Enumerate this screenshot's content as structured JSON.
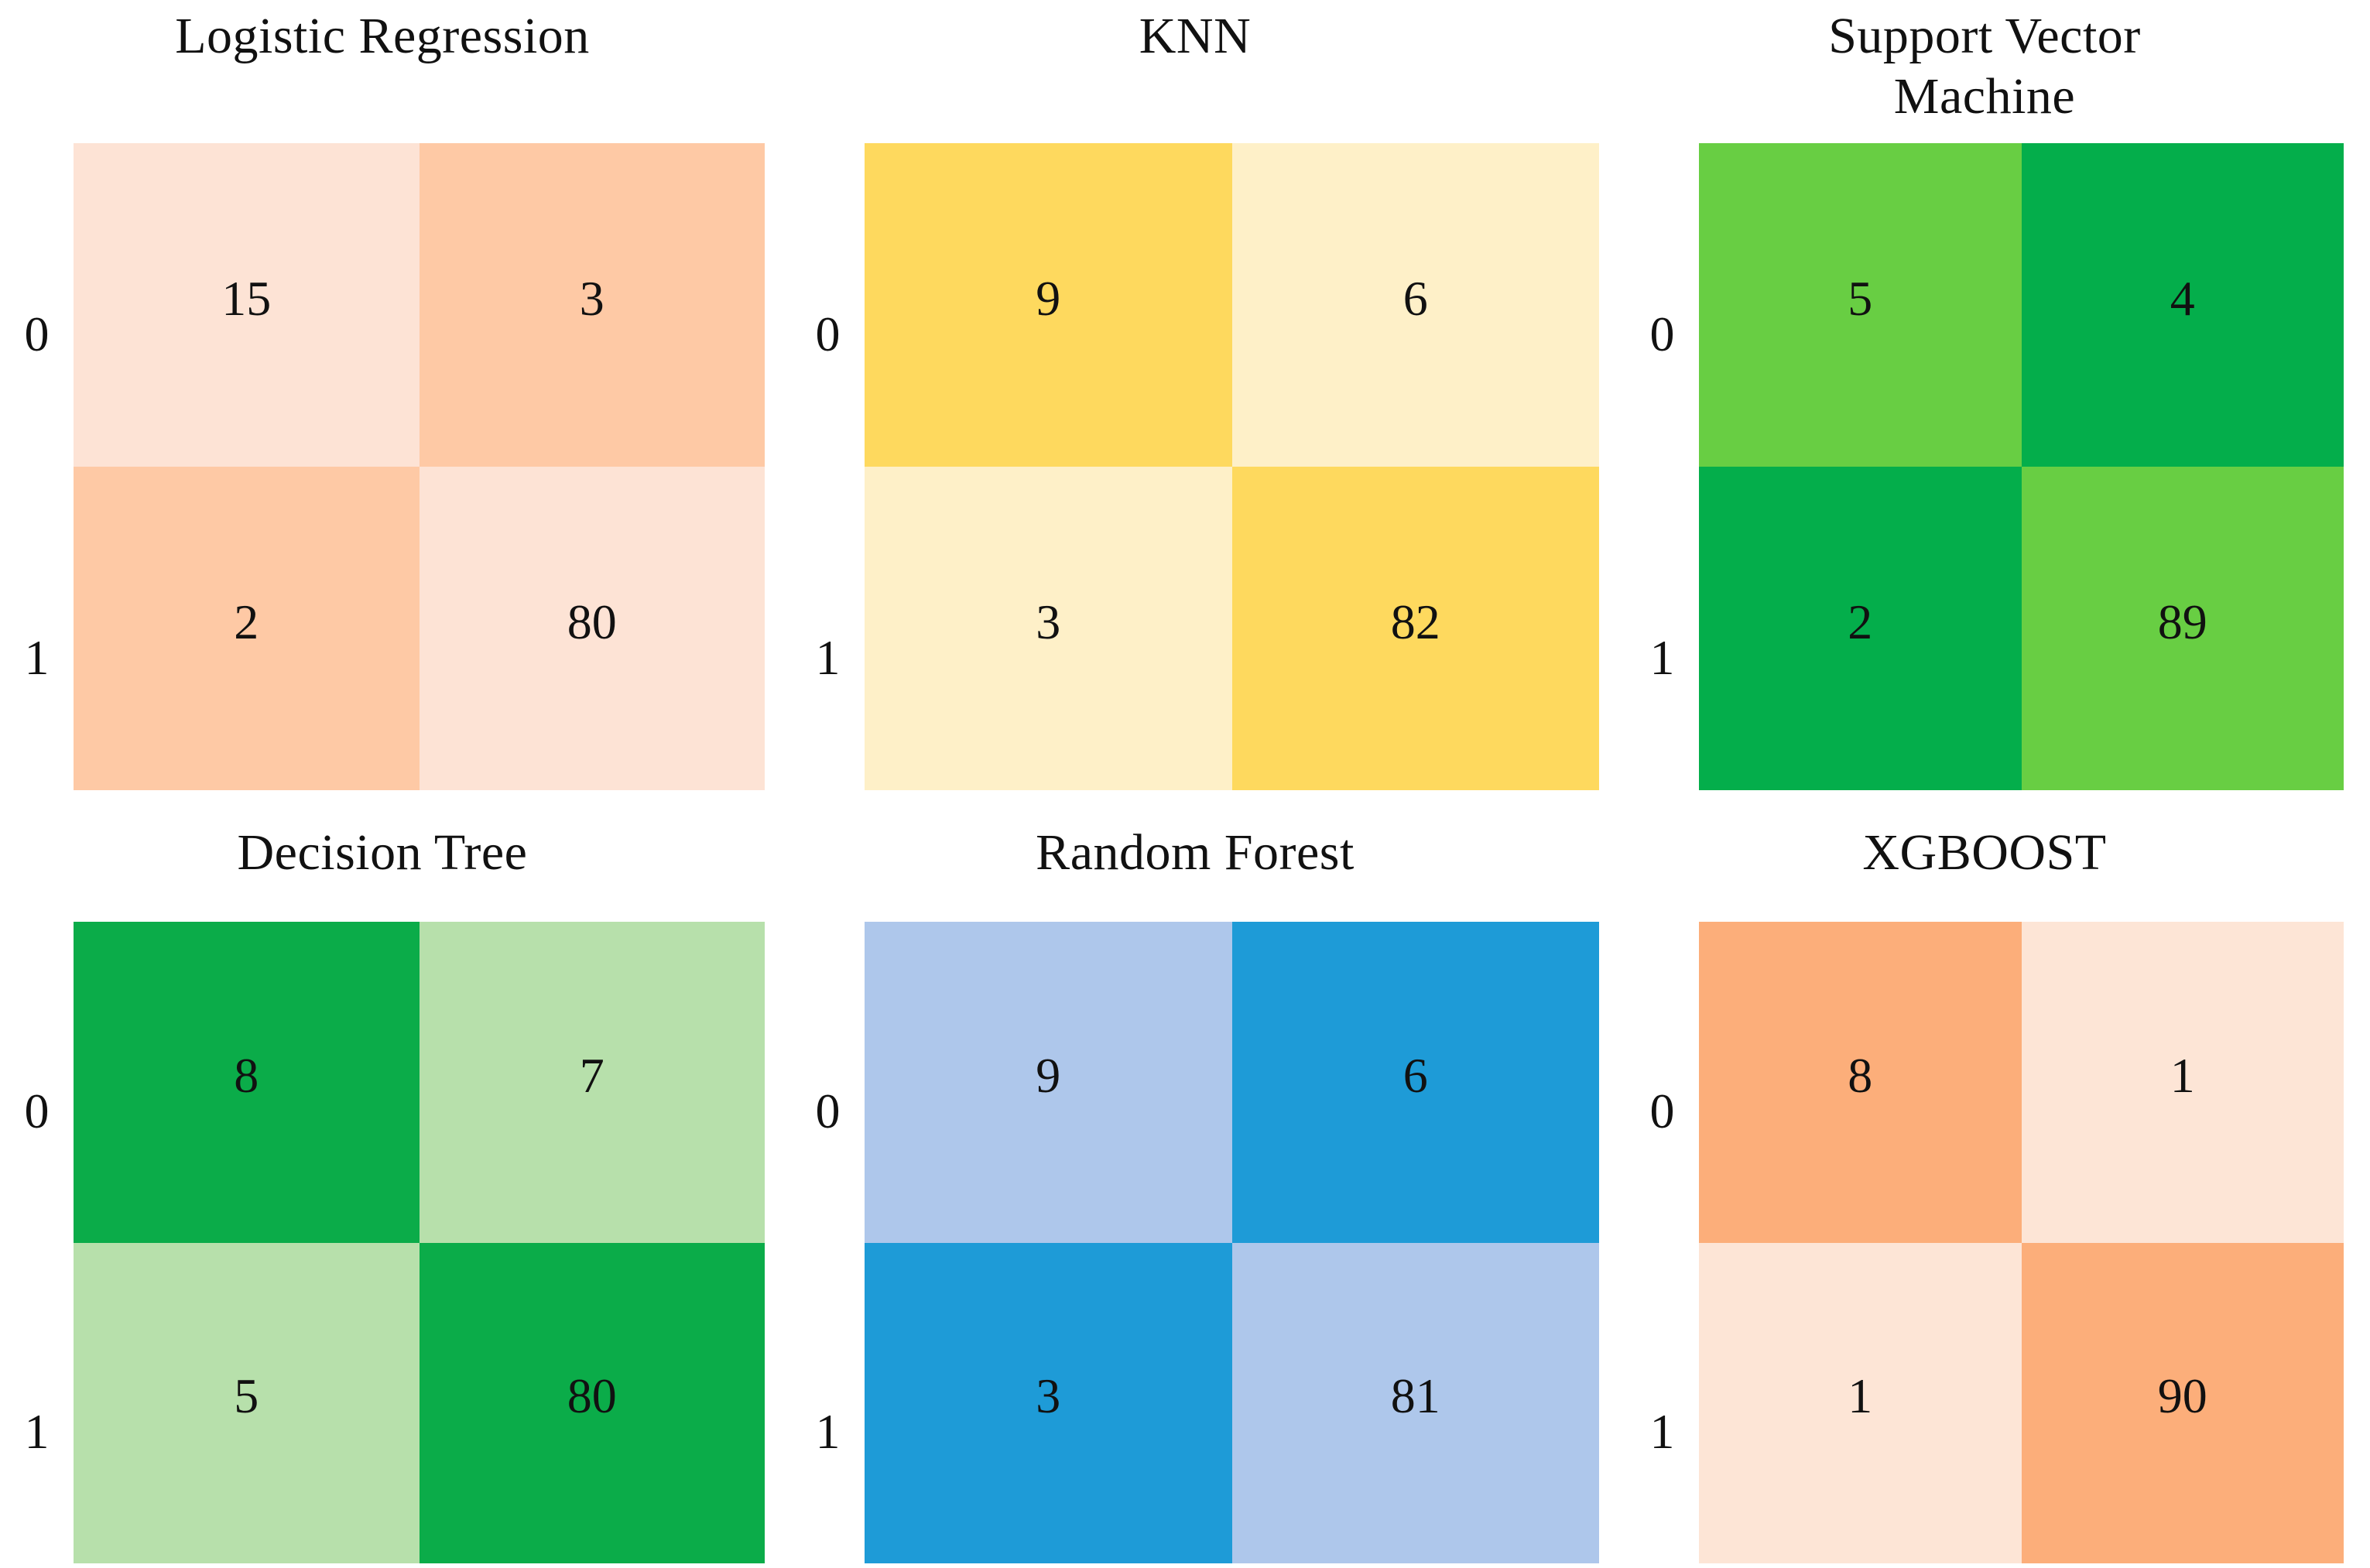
{
  "chart_data": [
    {
      "type": "heatmap",
      "title": "Logistic Regression",
      "row_labels": [
        "0",
        "1"
      ],
      "values": [
        [
          15,
          3
        ],
        [
          2,
          80
        ]
      ],
      "cell_colors": [
        [
          "#FDE3D5",
          "#FEC9A5"
        ],
        [
          "#FEC9A5",
          "#FDE3D5"
        ]
      ]
    },
    {
      "type": "heatmap",
      "title": "KNN",
      "row_labels": [
        "0",
        "1"
      ],
      "values": [
        [
          9,
          6
        ],
        [
          3,
          82
        ]
      ],
      "cell_colors": [
        [
          "#FED95E",
          "#FEF0C8"
        ],
        [
          "#FEF0C8",
          "#FED95E"
        ]
      ]
    },
    {
      "type": "heatmap",
      "title": "Support Vector Machine",
      "row_labels": [
        "0",
        "1"
      ],
      "values": [
        [
          5,
          4
        ],
        [
          2,
          89
        ]
      ],
      "cell_colors": [
        [
          "#68CE43",
          "#04AE4B"
        ],
        [
          "#04AE4B",
          "#68CE43"
        ]
      ]
    },
    {
      "type": "heatmap",
      "title": "Decision Tree",
      "row_labels": [
        "0",
        "1"
      ],
      "values": [
        [
          8,
          7
        ],
        [
          5,
          80
        ]
      ],
      "cell_colors": [
        [
          "#0BAC49",
          "#B7E0AB"
        ],
        [
          "#B7E0AB",
          "#0BAC49"
        ]
      ]
    },
    {
      "type": "heatmap",
      "title": "Random Forest",
      "row_labels": [
        "0",
        "1"
      ],
      "values": [
        [
          9,
          6
        ],
        [
          3,
          81
        ]
      ],
      "cell_colors": [
        [
          "#AEC7EB",
          "#1E9BD7"
        ],
        [
          "#1E9BD7",
          "#AEC7EB"
        ]
      ]
    },
    {
      "type": "heatmap",
      "title": "XGBOOST",
      "row_labels": [
        "0",
        "1"
      ],
      "values": [
        [
          8,
          1
        ],
        [
          1,
          90
        ]
      ],
      "cell_colors": [
        [
          "#FCAE7A",
          "#FDE5D6"
        ],
        [
          "#FDE5D6",
          "#FCAE7A"
        ]
      ]
    }
  ],
  "text_color": "#111111"
}
